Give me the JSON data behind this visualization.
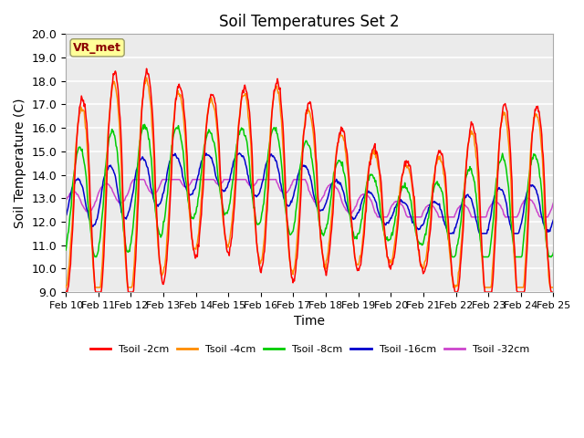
{
  "title": "Soil Temperatures Set 2",
  "xlabel": "Time",
  "ylabel": "Soil Temperature (C)",
  "ylim": [
    9.0,
    20.0
  ],
  "yticks": [
    9.0,
    10.0,
    11.0,
    12.0,
    13.0,
    14.0,
    15.0,
    16.0,
    17.0,
    18.0,
    19.0,
    20.0
  ],
  "date_labels": [
    "Feb 10",
    "Feb 11",
    "Feb 12",
    "Feb 13",
    "Feb 14",
    "Feb 15",
    "Feb 16",
    "Feb 17",
    "Feb 18",
    "Feb 19",
    "Feb 20",
    "Feb 21",
    "Feb 22",
    "Feb 23",
    "Feb 24",
    "Feb 25"
  ],
  "annotation_text": "VR_met",
  "annotation_color": "#8B0000",
  "annotation_bg": "#FFFF99",
  "series_colors": [
    "#FF0000",
    "#FF8C00",
    "#00CC00",
    "#0000CC",
    "#CC44CC"
  ],
  "series_labels": [
    "Tsoil -2cm",
    "Tsoil -4cm",
    "Tsoil -8cm",
    "Tsoil -16cm",
    "Tsoil -32cm"
  ],
  "plot_bg": "#EBEBEB",
  "grid_color": "#FFFFFF",
  "n_points": 720
}
